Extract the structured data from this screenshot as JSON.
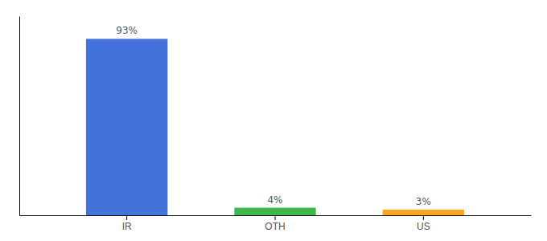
{
  "chart_data": {
    "type": "bar",
    "categories": [
      "IR",
      "OTH",
      "US"
    ],
    "values": [
      93,
      4,
      3
    ],
    "value_labels": [
      "93%",
      "4%",
      "3%"
    ],
    "colors": [
      "#4472db",
      "#3db84a",
      "#f5a623"
    ],
    "ylim": [
      0,
      105
    ],
    "data_labels": true,
    "tick_labels": "x",
    "grid": false
  }
}
